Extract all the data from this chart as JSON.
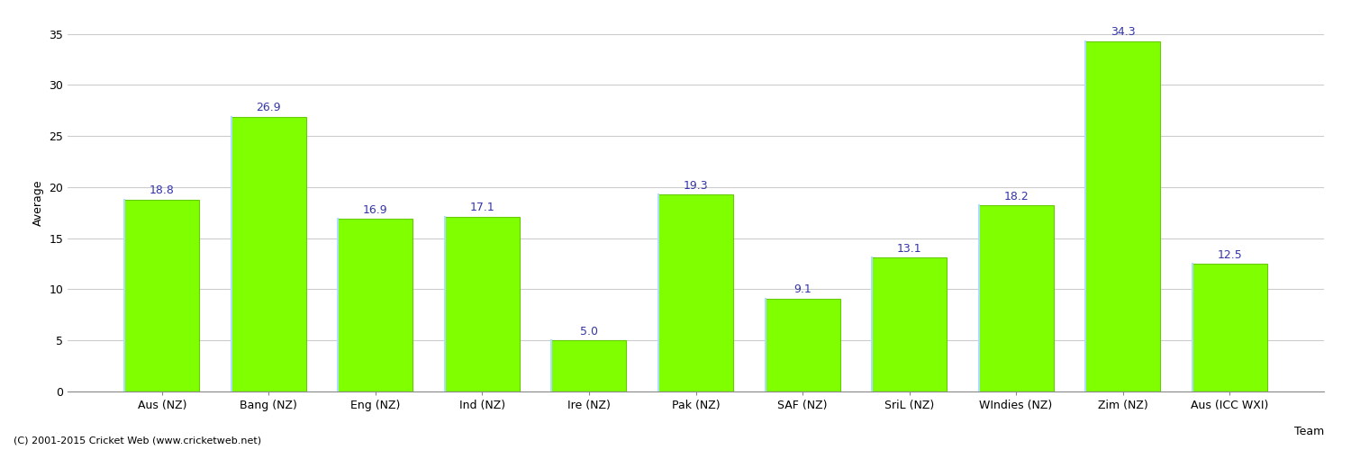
{
  "categories": [
    "Aus (NZ)",
    "Bang (NZ)",
    "Eng (NZ)",
    "Ind (NZ)",
    "Ire (NZ)",
    "Pak (NZ)",
    "SAF (NZ)",
    "SriL (NZ)",
    "WIndies (NZ)",
    "Zim (NZ)",
    "Aus (ICC WXI)"
  ],
  "values": [
    18.8,
    26.9,
    16.9,
    17.1,
    5.0,
    19.3,
    9.1,
    13.1,
    18.2,
    34.3,
    12.5
  ],
  "bar_color": "#7FFF00",
  "bar_edge_color_left": "#AADDFF",
  "bar_edge_color_other": "#66CC00",
  "label_color": "#3333AA",
  "ylabel": "Average",
  "xlabel": "Team",
  "ylim": [
    0,
    37
  ],
  "yticks": [
    0,
    5,
    10,
    15,
    20,
    25,
    30,
    35
  ],
  "grid_color": "#CCCCCC",
  "background_color": "#FFFFFF",
  "label_fontsize": 9,
  "axis_fontsize": 9,
  "tick_fontsize": 9,
  "footer": "(C) 2001-2015 Cricket Web (www.cricketweb.net)",
  "footer_fontsize": 8,
  "bar_width": 0.7
}
